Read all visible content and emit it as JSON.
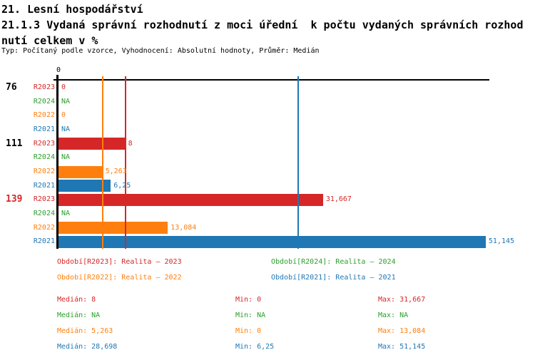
{
  "header": {
    "line1": "21. Lesní hospodářství",
    "line2": "21.1.3 Vydaná správní rozhodnutí z moci úřední  k počtu vydaných správních rozhod",
    "line3": "nutí celkem v %",
    "meta": "Typ: Počítaný podle vzorce, Vyhodnocení: Absolutní hodnoty, Průměr: Medián"
  },
  "colors": {
    "R2023": "#d62728",
    "R2024": "#2ca02c",
    "R2022": "#ff7f0e",
    "R2021": "#1f77b4",
    "axis": "#000000"
  },
  "chart_data": {
    "type": "bar",
    "orientation": "horizontal",
    "title": "21.1.3 Vydaná správní rozhodnutí z moci úřední k počtu vydaných správních rozhodnutí celkem v %",
    "xlabel": "",
    "ylabel": "",
    "axis_tick_label": "0",
    "xlim": [
      0,
      51.6
    ],
    "grid": false,
    "series_order": [
      "R2023",
      "R2024",
      "R2022",
      "R2021"
    ],
    "groups": [
      {
        "label": "76",
        "label_color": "#000000",
        "bars": [
          {
            "series": "R2023",
            "value": 0,
            "display": "0"
          },
          {
            "series": "R2024",
            "value": null,
            "display": "NA"
          },
          {
            "series": "R2022",
            "value": 0,
            "display": "0"
          },
          {
            "series": "R2021",
            "value": null,
            "display": "NA"
          }
        ]
      },
      {
        "label": "111",
        "label_color": "#000000",
        "bars": [
          {
            "series": "R2023",
            "value": 8,
            "display": "8"
          },
          {
            "series": "R2024",
            "value": null,
            "display": "NA"
          },
          {
            "series": "R2022",
            "value": 5.263,
            "display": "5,263"
          },
          {
            "series": "R2021",
            "value": 6.25,
            "display": "6,25"
          }
        ]
      },
      {
        "label": "139",
        "label_color": "#d62728",
        "bars": [
          {
            "series": "R2023",
            "value": 31.667,
            "display": "31,667"
          },
          {
            "series": "R2024",
            "value": null,
            "display": "NA"
          },
          {
            "series": "R2022",
            "value": 13.084,
            "display": "13,084"
          },
          {
            "series": "R2021",
            "value": 51.145,
            "display": "51,145"
          }
        ]
      }
    ],
    "median_lines": [
      {
        "series": "R2022",
        "value": 5.263
      },
      {
        "series": "R2023",
        "value": 8
      },
      {
        "series": "R2021",
        "value": 28.698
      }
    ]
  },
  "legend": {
    "items": [
      {
        "series": "R2023",
        "label": "Období[R2023]: Realita – 2023"
      },
      {
        "series": "R2024",
        "label": "Období[R2024]: Realita – 2024"
      },
      {
        "series": "R2022",
        "label": "Období[R2022]: Realita – 2022"
      },
      {
        "series": "R2021",
        "label": "Období[R2021]: Realita – 2021"
      }
    ]
  },
  "stats": {
    "labels": {
      "median": "Medián",
      "min": "Min",
      "max": "Max"
    },
    "rows": [
      {
        "series": "R2023",
        "median": "8",
        "min": "0",
        "max": "31,667"
      },
      {
        "series": "R2024",
        "median": "NA",
        "min": "NA",
        "max": "NA"
      },
      {
        "series": "R2022",
        "median": "5,263",
        "min": "0",
        "max": "13,084"
      },
      {
        "series": "R2021",
        "median": "28,698",
        "min": "6,25",
        "max": "51,145"
      }
    ]
  }
}
